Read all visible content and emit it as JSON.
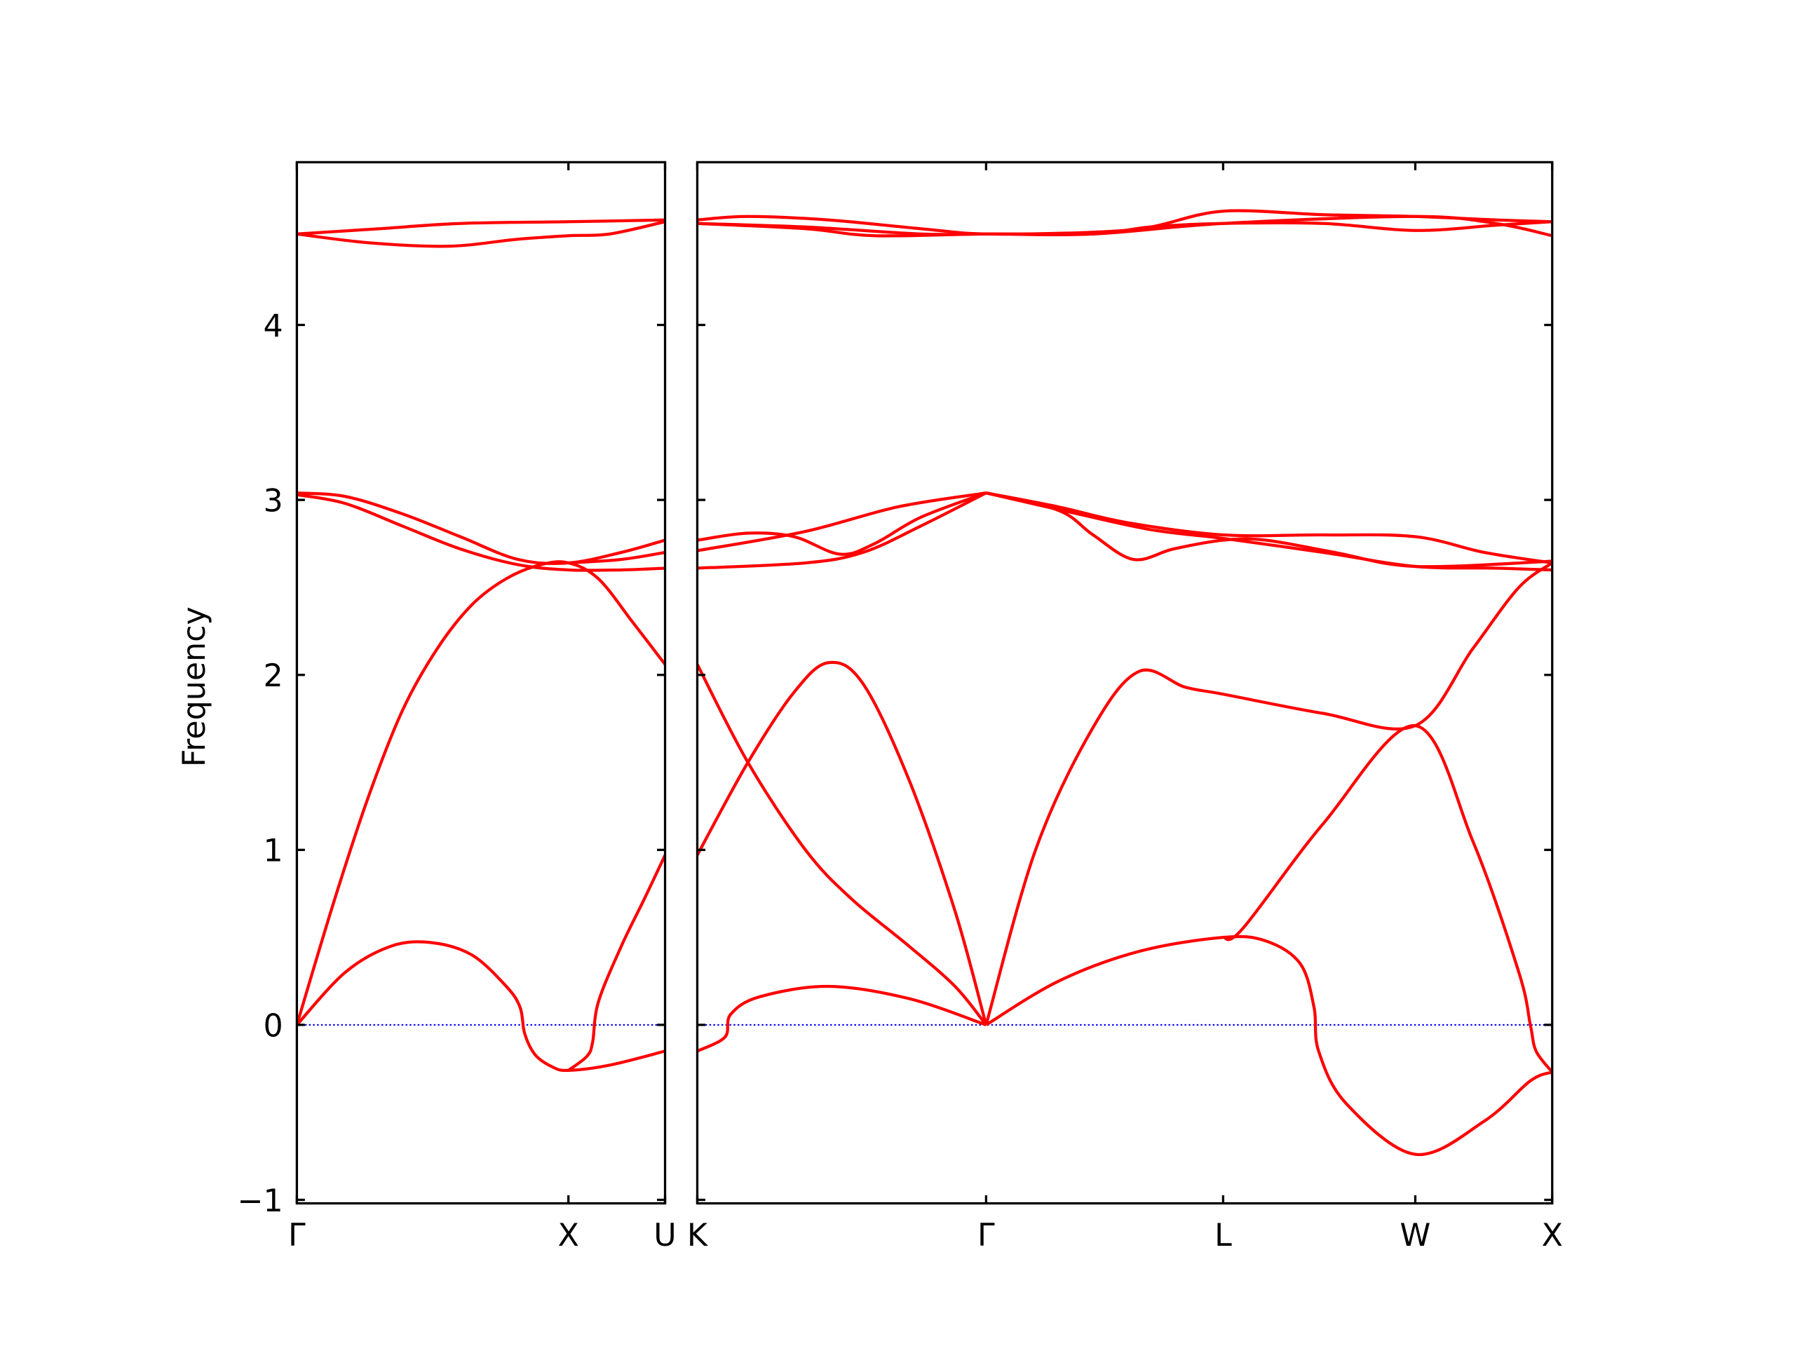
{
  "chart_data": [
    {
      "type": "line",
      "ylabel": "Frequency",
      "color": "#ff0000",
      "hline": 0,
      "hline_color": "#0000ff",
      "xlim": [
        0,
        3.2
      ],
      "xticks": [
        {
          "value": 0,
          "label": "Γ"
        },
        {
          "value": 2.36,
          "label": "X"
        },
        {
          "value": 3.2,
          "label": "U"
        }
      ],
      "ylim": [
        -1.02,
        4.93
      ],
      "yticks": [
        {
          "value": -1,
          "label": "−1"
        },
        0,
        1,
        2,
        3,
        4
      ],
      "series": [
        {
          "x": [
            0,
            0.72,
            1.42,
            2.36,
            3.2
          ],
          "values": [
            4.52,
            4.55,
            4.58,
            4.59,
            4.6
          ]
        },
        {
          "x": [
            0,
            0.62,
            1.32,
            1.92,
            2.36,
            2.72,
            3.2
          ],
          "values": [
            4.52,
            4.47,
            4.45,
            4.49,
            4.51,
            4.52,
            4.59
          ]
        },
        {
          "x": [
            0,
            0.42,
            0.92,
            1.42,
            1.92,
            2.36,
            2.82,
            3.2
          ],
          "values": [
            3.04,
            3.02,
            2.92,
            2.79,
            2.66,
            2.64,
            2.7,
            2.77
          ]
        },
        {
          "x": [
            0,
            0.42,
            0.92,
            1.42,
            1.92,
            2.36,
            2.82,
            3.2
          ],
          "values": [
            3.03,
            2.98,
            2.85,
            2.72,
            2.63,
            2.6,
            2.6,
            2.61
          ]
        },
        {
          "x": [
            2.36,
            2.82,
            3.2
          ],
          "values": [
            2.64,
            2.66,
            2.7
          ]
        },
        {
          "x": [
            0,
            0.32,
            0.62,
            0.92,
            1.22,
            1.52,
            1.82,
            2.12,
            2.36,
            2.62,
            2.92,
            3.2
          ],
          "values": [
            0,
            0.7,
            1.3,
            1.8,
            2.15,
            2.4,
            2.55,
            2.63,
            2.64,
            2.55,
            2.3,
            2.06
          ]
        },
        {
          "x": [
            0,
            0.42,
            0.82,
            1.17,
            1.52,
            1.82,
            1.94,
            1.98,
            2.07,
            2.22,
            2.36,
            2.72,
            3.2
          ],
          "values": [
            0,
            0.3,
            0.45,
            0.47,
            0.4,
            0.22,
            0.1,
            -0.05,
            -0.17,
            -0.24,
            -0.26,
            -0.23,
            -0.15
          ]
        },
        {
          "x": [
            2.36,
            2.52,
            2.57,
            2.62,
            2.82,
            3.02,
            3.2
          ],
          "values": [
            -0.26,
            -0.18,
            -0.1,
            0.13,
            0.45,
            0.72,
            0.97
          ]
        }
      ]
    },
    {
      "type": "line",
      "color": "#ff0000",
      "hline": 0,
      "hline_color": "#0000ff",
      "xlim": [
        0,
        7.43
      ],
      "xticks": [
        {
          "value": 0,
          "label": "K"
        },
        {
          "value": 2.51,
          "label": "Γ"
        },
        {
          "value": 4.57,
          "label": "L"
        },
        {
          "value": 6.24,
          "label": "W"
        },
        {
          "value": 7.43,
          "label": "X"
        }
      ],
      "ylim": [
        -1.02,
        4.93
      ],
      "yticks": [
        -1,
        0,
        1,
        2,
        3,
        4
      ],
      "series": [
        {
          "x": [
            0,
            0.44,
            1.14,
            1.94,
            2.51,
            3.44,
            3.94,
            4.57,
            5.44,
            6.24,
            6.94,
            7.43
          ],
          "values": [
            4.6,
            4.62,
            4.6,
            4.55,
            4.52,
            4.53,
            4.56,
            4.65,
            4.63,
            4.62,
            4.6,
            4.59
          ]
        },
        {
          "x": [
            0,
            0.94,
            1.54,
            2.51,
            3.44,
            3.94,
            4.57,
            5.44,
            6.24,
            6.94,
            7.43
          ],
          "values": [
            4.58,
            4.55,
            4.51,
            4.52,
            4.52,
            4.56,
            4.58,
            4.58,
            4.54,
            4.57,
            4.59
          ]
        },
        {
          "x": [
            0,
            0.94,
            1.94,
            2.51,
            3.44,
            4.57,
            6.24,
            6.94,
            7.43
          ],
          "values": [
            4.58,
            4.56,
            4.52,
            4.52,
            4.52,
            4.58,
            4.62,
            4.58,
            4.51
          ]
        },
        {
          "x": [
            0,
            0.44,
            0.84,
            1.24,
            1.54,
            1.94,
            2.51
          ],
          "values": [
            2.77,
            2.81,
            2.79,
            2.69,
            2.75,
            2.9,
            3.04
          ]
        },
        {
          "x": [
            0,
            0.94,
            1.74,
            2.51
          ],
          "values": [
            2.71,
            2.82,
            2.96,
            3.04
          ]
        },
        {
          "x": [
            0,
            0.94,
            1.44,
            1.94,
            2.51
          ],
          "values": [
            2.61,
            2.64,
            2.7,
            2.85,
            3.04
          ]
        },
        {
          "x": [
            2.51,
            3.14,
            3.74,
            4.57,
            5.44,
            6.24,
            6.84,
            7.43
          ],
          "values": [
            3.04,
            2.96,
            2.87,
            2.8,
            2.8,
            2.79,
            2.7,
            2.64
          ]
        },
        {
          "x": [
            2.51,
            3.14,
            3.44,
            3.79,
            4.14,
            4.57,
            4.94,
            5.54,
            6.24,
            7.43
          ],
          "values": [
            3.04,
            2.94,
            2.8,
            2.66,
            2.72,
            2.77,
            2.77,
            2.7,
            2.62,
            2.65
          ]
        },
        {
          "x": [
            2.51,
            3.24,
            3.94,
            4.57,
            5.44,
            6.24,
            6.94,
            7.43
          ],
          "values": [
            3.04,
            2.93,
            2.83,
            2.78,
            2.7,
            2.62,
            2.61,
            2.6
          ]
        },
        {
          "x": [
            0,
            0.44,
            0.94,
            1.34,
            1.84,
            2.24,
            2.51
          ],
          "values": [
            2.06,
            1.5,
            1.0,
            0.72,
            0.45,
            0.22,
            0
          ]
        },
        {
          "x": [
            0,
            0.44,
            0.84,
            1.14,
            1.44,
            1.84,
            2.24,
            2.51
          ],
          "values": [
            0.97,
            1.5,
            1.9,
            2.07,
            1.95,
            1.4,
            0.65,
            0
          ]
        },
        {
          "x": [
            0,
            0.24,
            0.29,
            0.54,
            1.14,
            1.84,
            2.51
          ],
          "values": [
            -0.15,
            -0.07,
            0.06,
            0.16,
            0.22,
            0.15,
            0
          ]
        },
        {
          "x": [
            2.51,
            2.94,
            3.44,
            3.84,
            4.24,
            4.57,
            5.44,
            6.24,
            6.74,
            7.14,
            7.43
          ],
          "values": [
            0,
            1.0,
            1.7,
            2.02,
            1.93,
            1.89,
            1.78,
            1.71,
            2.15,
            2.5,
            2.64
          ]
        },
        {
          "x": [
            2.51,
            3.14,
            3.84,
            4.57,
            4.94,
            5.24,
            5.36,
            5.4,
            5.64,
            6.24,
            6.84,
            7.24,
            7.43
          ],
          "values": [
            0,
            0.25,
            0.42,
            0.5,
            0.48,
            0.35,
            0.1,
            -0.15,
            -0.45,
            -0.74,
            -0.55,
            -0.32,
            -0.27
          ]
        },
        {
          "x": [
            4.57,
            4.74,
            5.44,
            6.24,
            6.74,
            7.14,
            7.24,
            7.29,
            7.43
          ],
          "values": [
            0.5,
            0.55,
            1.15,
            1.71,
            1.05,
            0.3,
            0.0,
            -0.15,
            -0.27
          ]
        }
      ]
    }
  ]
}
